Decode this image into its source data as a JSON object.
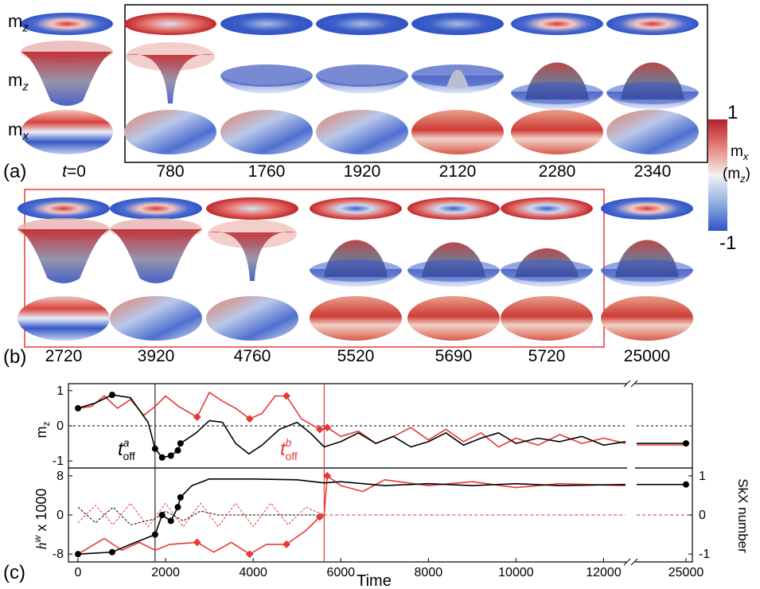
{
  "panel_a": {
    "label": "(a)",
    "t0_prefix": "t",
    "t0_suffix": "=0",
    "row_labels": {
      "top": "m",
      "top_sub": "z",
      "mid": "m",
      "mid_sub": "z",
      "bot": "m",
      "bot_sub": "x"
    },
    "times": [
      "780",
      "1760",
      "1920",
      "2120",
      "2280",
      "2340"
    ]
  },
  "panel_b": {
    "label": "(b)",
    "times": [
      "2720",
      "3920",
      "4760",
      "5520",
      "5690",
      "5720",
      "25000"
    ]
  },
  "colorbar": {
    "max_label": "1",
    "min_label": "-1",
    "var1": "m",
    "var1_sub": "x",
    "var2": "(m",
    "var2_sub": "z",
    "var2_end": ")",
    "colors": [
      "#c1272d",
      "#e8837a",
      "#f2f2f2",
      "#8fb0e0",
      "#2f54c8"
    ]
  },
  "panel_c": {
    "label": "(c)",
    "xlabel": "Time",
    "x_ticks": [
      "0",
      "2000",
      "4000",
      "6000",
      "8000",
      "10000",
      "12000",
      "25000"
    ],
    "top_ylabel": "m",
    "top_ylabel_sub": "z",
    "top_yticks": [
      "1",
      "0",
      "-1"
    ],
    "bot_ylabel": "h",
    "bot_ylabel_sup": "w",
    "bot_ylabel_suffix": " x 1000",
    "bot_yticks": [
      "8",
      "0",
      "-8"
    ],
    "right_ylabel": "SkX number",
    "right_yticks": [
      "1",
      "0",
      "-1"
    ],
    "annot_a": "t",
    "annot_a_sup": "a",
    "annot_a_sub": "off",
    "annot_b": "t",
    "annot_b_sup": "b",
    "annot_b_sub": "off"
  },
  "chart_data": {
    "type": "line",
    "x_range": [
      0,
      12500
    ],
    "x_break_value": 25000,
    "markers_x_black": [
      0,
      780,
      1760,
      1920,
      2120,
      2280,
      2340,
      25000
    ],
    "markers_x_red": [
      2720,
      3920,
      4760,
      5520,
      5690
    ],
    "vline_a": 1760,
    "vline_b": 5620,
    "mz_black": [
      [
        0,
        0.5
      ],
      [
        400,
        0.65
      ],
      [
        780,
        0.88
      ],
      [
        1200,
        0.8
      ],
      [
        1600,
        0.1
      ],
      [
        1760,
        -0.65
      ],
      [
        1920,
        -0.9
      ],
      [
        2120,
        -0.85
      ],
      [
        2280,
        -0.7
      ],
      [
        2340,
        -0.5
      ],
      [
        2700,
        -0.2
      ],
      [
        3000,
        0.15
      ],
      [
        3300,
        0.1
      ],
      [
        3600,
        -0.5
      ],
      [
        3900,
        -0.8
      ],
      [
        4200,
        -0.55
      ],
      [
        4600,
        -0.1
      ],
      [
        5000,
        0.1
      ],
      [
        5300,
        -0.2
      ],
      [
        5620,
        -0.6
      ],
      [
        6000,
        -0.45
      ],
      [
        6400,
        -0.2
      ],
      [
        6800,
        -0.5
      ],
      [
        7200,
        -0.3
      ],
      [
        7600,
        -0.6
      ],
      [
        8000,
        -0.45
      ],
      [
        8400,
        -0.2
      ],
      [
        8800,
        -0.55
      ],
      [
        9200,
        -0.35
      ],
      [
        9600,
        -0.2
      ],
      [
        10000,
        -0.5
      ],
      [
        10500,
        -0.35
      ],
      [
        11000,
        -0.45
      ],
      [
        11500,
        -0.3
      ],
      [
        12000,
        -0.55
      ],
      [
        12500,
        -0.45
      ]
    ],
    "mz_red": [
      [
        0,
        0.5
      ],
      [
        300,
        0.55
      ],
      [
        600,
        0.85
      ],
      [
        900,
        0.5
      ],
      [
        1200,
        0.75
      ],
      [
        1500,
        0.3
      ],
      [
        1760,
        0.55
      ],
      [
        2000,
        0.85
      ],
      [
        2300,
        0.55
      ],
      [
        2720,
        0.25
      ],
      [
        3000,
        0.95
      ],
      [
        3300,
        0.7
      ],
      [
        3600,
        0.5
      ],
      [
        3920,
        0.2
      ],
      [
        4200,
        0.35
      ],
      [
        4500,
        0.85
      ],
      [
        4760,
        0.85
      ],
      [
        5100,
        0.2
      ],
      [
        5520,
        -0.1
      ],
      [
        5690,
        -0.05
      ],
      [
        6000,
        -0.3
      ],
      [
        6400,
        -0.15
      ],
      [
        6800,
        -0.5
      ],
      [
        7200,
        -0.3
      ],
      [
        7600,
        -0.05
      ],
      [
        8000,
        -0.4
      ],
      [
        8400,
        -0.1
      ],
      [
        8800,
        -0.45
      ],
      [
        9200,
        -0.2
      ],
      [
        9600,
        -0.6
      ],
      [
        10000,
        -0.35
      ],
      [
        10500,
        -0.55
      ],
      [
        11000,
        -0.25
      ],
      [
        11500,
        -0.5
      ],
      [
        12000,
        -0.35
      ],
      [
        12500,
        -0.5
      ]
    ],
    "skx_black": [
      [
        0,
        -1
      ],
      [
        780,
        -0.95
      ],
      [
        1200,
        -0.75
      ],
      [
        1760,
        -0.5
      ],
      [
        1920,
        0
      ],
      [
        2120,
        -0.15
      ],
      [
        2280,
        0.2
      ],
      [
        2340,
        0.45
      ],
      [
        2600,
        0.75
      ],
      [
        3000,
        0.92
      ],
      [
        4000,
        0.92
      ],
      [
        5000,
        0.9
      ],
      [
        5620,
        0.82
      ],
      [
        6000,
        0.85
      ],
      [
        7000,
        0.75
      ],
      [
        8000,
        0.8
      ],
      [
        9000,
        0.75
      ],
      [
        10000,
        0.8
      ],
      [
        11000,
        0.75
      ],
      [
        12500,
        0.78
      ]
    ],
    "skx_red": [
      [
        0,
        -1
      ],
      [
        600,
        -0.6
      ],
      [
        1000,
        -0.9
      ],
      [
        1400,
        -0.7
      ],
      [
        1760,
        -0.9
      ],
      [
        2100,
        -0.75
      ],
      [
        2720,
        -0.7
      ],
      [
        3100,
        -0.95
      ],
      [
        3500,
        -0.7
      ],
      [
        3920,
        -1
      ],
      [
        4300,
        -0.75
      ],
      [
        4760,
        -0.75
      ],
      [
        5200,
        -0.4
      ],
      [
        5520,
        -0.05
      ],
      [
        5620,
        0
      ],
      [
        5690,
        1
      ],
      [
        6000,
        0.75
      ],
      [
        6500,
        0.6
      ],
      [
        7000,
        0.9
      ],
      [
        8000,
        0.75
      ],
      [
        9000,
        0.85
      ],
      [
        10000,
        0.7
      ],
      [
        11000,
        0.8
      ],
      [
        12500,
        0.75
      ]
    ],
    "hw_black_dashed": [
      [
        0,
        0.2
      ],
      [
        400,
        -0.2
      ],
      [
        800,
        0.2
      ],
      [
        1200,
        -0.25
      ],
      [
        1760,
        -0.1
      ],
      [
        2000,
        0.1
      ],
      [
        2400,
        -0.15
      ],
      [
        2800,
        0.1
      ],
      [
        3200,
        0
      ],
      [
        5620,
        0
      ]
    ],
    "hw_red_dashed": [
      [
        0,
        -0.2
      ],
      [
        400,
        0.25
      ],
      [
        800,
        -0.25
      ],
      [
        1200,
        0.3
      ],
      [
        1600,
        -0.3
      ],
      [
        2000,
        0.3
      ],
      [
        2400,
        -0.3
      ],
      [
        2800,
        0.3
      ],
      [
        3200,
        -0.3
      ],
      [
        3600,
        0.3
      ],
      [
        4000,
        -0.3
      ],
      [
        4400,
        0.3
      ],
      [
        4800,
        -0.25
      ],
      [
        5200,
        0.2
      ],
      [
        5620,
        0
      ]
    ],
    "break_values": {
      "mz_black": -0.5,
      "mz_red": -0.5,
      "skx_black": 0.78,
      "skx_red": 0.75
    }
  }
}
